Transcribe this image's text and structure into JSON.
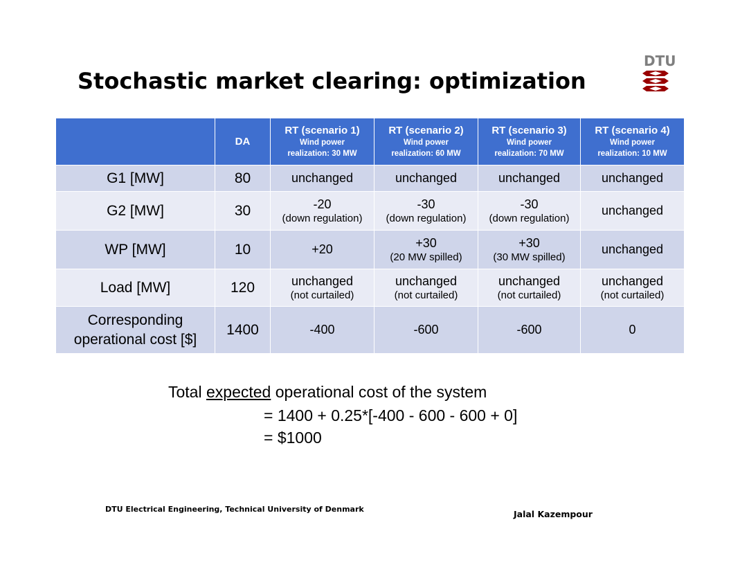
{
  "slide": {
    "title": "Stochastic market clearing: optimization",
    "logo_text": "DTU"
  },
  "table": {
    "headers": [
      {
        "main": "",
        "sub1": "",
        "sub2": ""
      },
      {
        "main": "DA",
        "sub1": "",
        "sub2": ""
      },
      {
        "main": "RT (scenario 1)",
        "sub1": "Wind power",
        "sub2": "realization: 30 MW"
      },
      {
        "main": "RT (scenario 2)",
        "sub1": "Wind power",
        "sub2": "realization: 60 MW"
      },
      {
        "main": "RT (scenario 3)",
        "sub1": "Wind power",
        "sub2": "realization: 70 MW"
      },
      {
        "main": "RT (scenario 4)",
        "sub1": "Wind power",
        "sub2": "realization: 10 MW"
      }
    ],
    "rows": [
      {
        "label": "G1 [MW]",
        "da": "80",
        "cells": [
          {
            "main": "unchanged",
            "sub": ""
          },
          {
            "main": "unchanged",
            "sub": ""
          },
          {
            "main": "unchanged",
            "sub": ""
          },
          {
            "main": "unchanged",
            "sub": ""
          }
        ]
      },
      {
        "label": "G2 [MW]",
        "da": "30",
        "cells": [
          {
            "main": "-20",
            "sub": "(down regulation)"
          },
          {
            "main": "-30",
            "sub": "(down regulation)"
          },
          {
            "main": "-30",
            "sub": "(down regulation)"
          },
          {
            "main": "unchanged",
            "sub": ""
          }
        ]
      },
      {
        "label": "WP [MW]",
        "da": "10",
        "cells": [
          {
            "main": "+20",
            "sub": ""
          },
          {
            "main": "+30",
            "sub": "(20 MW spilled)"
          },
          {
            "main": "+30",
            "sub": "(30 MW spilled)"
          },
          {
            "main": "unchanged",
            "sub": ""
          }
        ]
      },
      {
        "label": "Load [MW]",
        "da": "120",
        "cells": [
          {
            "main": "unchanged",
            "sub": "(not curtailed)"
          },
          {
            "main": "unchanged",
            "sub": "(not curtailed)"
          },
          {
            "main": "unchanged",
            "sub": "(not curtailed)"
          },
          {
            "main": "unchanged",
            "sub": "(not curtailed)"
          }
        ]
      },
      {
        "label_line1": "Corresponding",
        "label_line2": "operational cost [$]",
        "da": "1400",
        "cells": [
          {
            "main": "-400",
            "sub": ""
          },
          {
            "main": "-600",
            "sub": ""
          },
          {
            "main": "-600",
            "sub": ""
          },
          {
            "main": "0",
            "sub": ""
          }
        ]
      }
    ]
  },
  "formula": {
    "line1_pre": "Total ",
    "line1_underlined": "expected",
    "line1_post": " operational cost of the system",
    "line2": "= 1400 + 0.25*[-400 - 600 - 600 + 0]",
    "line3": "= $1000"
  },
  "footer": {
    "left": "DTU Electrical Engineering, Technical University of Denmark",
    "right": "Jalal Kazempour"
  },
  "colors": {
    "header_bg": "#3f6fcf",
    "row_dark": "#cfd5ea",
    "row_light": "#e9ebf5",
    "logo_red": "#990000",
    "logo_gray": "#7f7f7f"
  }
}
